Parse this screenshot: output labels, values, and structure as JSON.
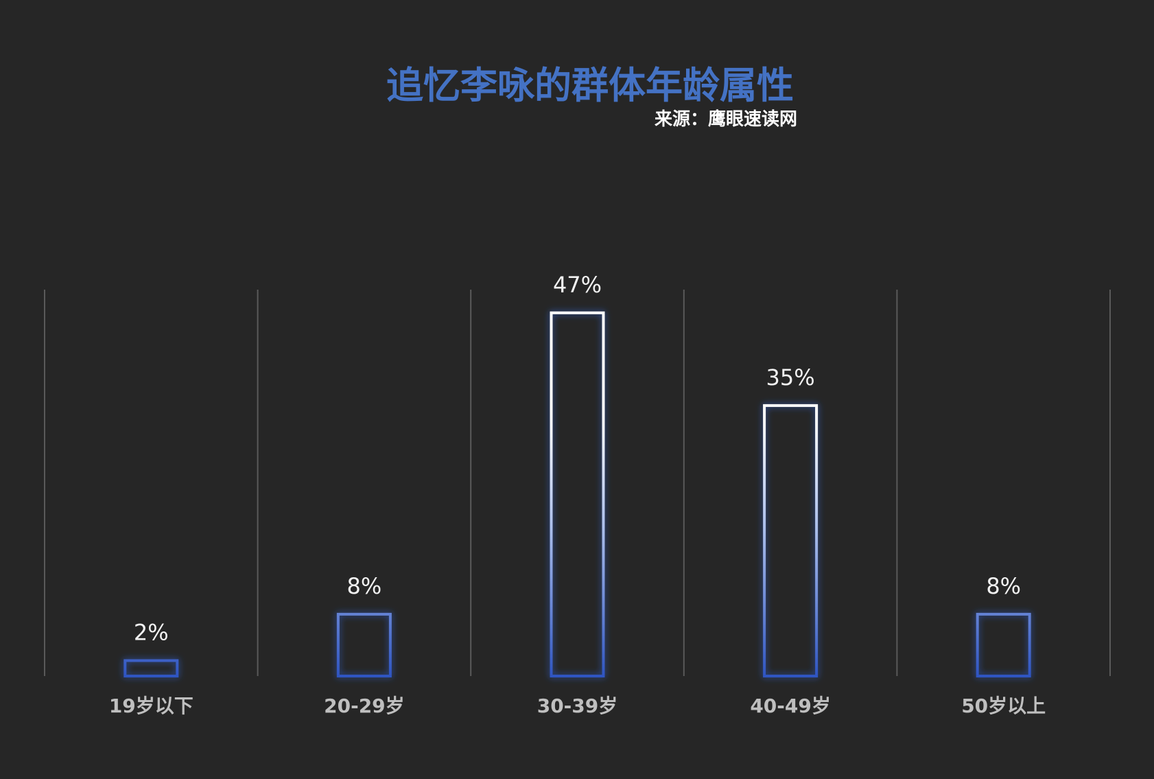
{
  "colors": {
    "background": "#262626",
    "title": "#4472C4",
    "subtitle": "#FFFFFF",
    "bar_top": "#FFFFFF",
    "bar_mid": "#A9BDEB",
    "bar_bottom": "#2F55C2",
    "glow": "#2F5FD0",
    "gridline": "#5A5A5A",
    "category_label": "#BFBFBF",
    "data_label": "#F2F2F2"
  },
  "chart_data": {
    "type": "bar",
    "title": "追忆李咏的群体年龄属性",
    "subtitle": "来源：鹰眼速读网",
    "categories": [
      "19岁以下",
      "20-29岁",
      "30-39岁",
      "40-49岁",
      "50岁以上"
    ],
    "values": [
      2,
      8,
      47,
      35,
      8
    ],
    "data_labels": [
      "2%",
      "8%",
      "47%",
      "35%",
      "8%"
    ],
    "ylim": [
      0,
      50
    ],
    "grid": true,
    "legend": "none"
  }
}
